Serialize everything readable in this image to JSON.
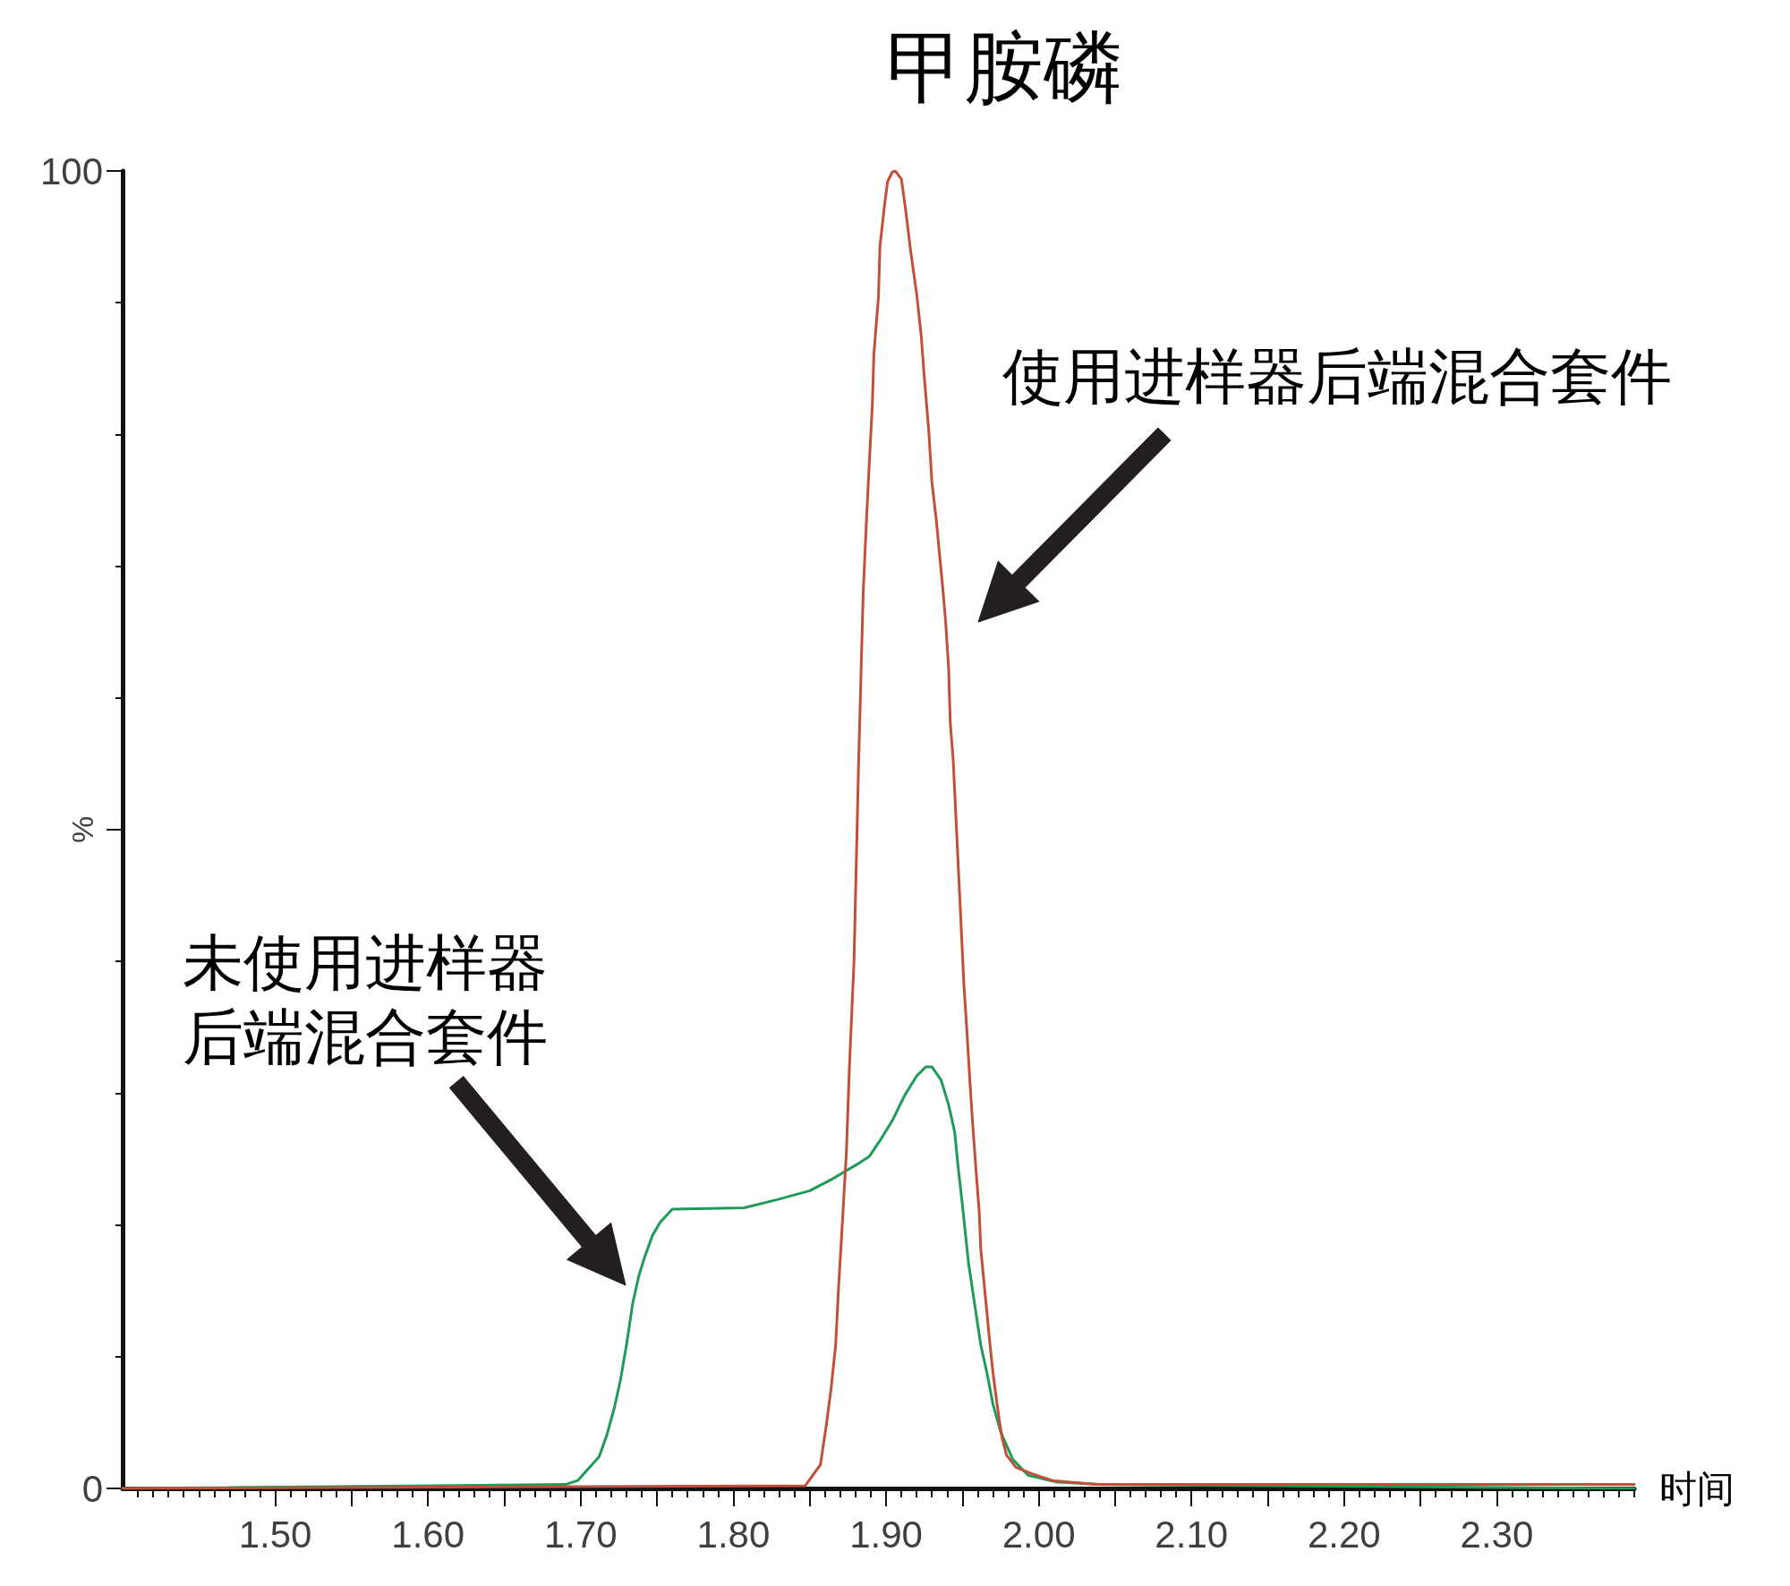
{
  "chart_data": {
    "type": "line",
    "title": "甲胺磷",
    "xlabel": "时间",
    "ylabel": "%",
    "annotations": [
      "使用进样器后端混合套件",
      "未使用进样器后端混合套件"
    ],
    "series": [
      {
        "color": "#1f9a58",
        "x": [
          1.4,
          1.69,
          1.698,
          1.705,
          1.712,
          1.717,
          1.722,
          1.726,
          1.73,
          1.734,
          1.738,
          1.742,
          1.747,
          1.752,
          1.76,
          1.807,
          1.828,
          1.85,
          1.865,
          1.881,
          1.889,
          1.896,
          1.904,
          1.912,
          1.92,
          1.926,
          1.93,
          1.936,
          1.941,
          1.945,
          1.947,
          1.95,
          1.954,
          1.958,
          1.962,
          1.966,
          1.97,
          1.975,
          1.983,
          1.993,
          2.011,
          2.04,
          2.39
        ],
        "values": [
          0,
          0.3,
          0.6,
          1.5,
          2.4,
          4,
          6.1,
          8.2,
          10.9,
          14,
          16.1,
          17.6,
          19.2,
          20.2,
          21.2,
          21.3,
          21.9,
          22.6,
          23.5,
          24.6,
          25.2,
          26.4,
          27.9,
          29.8,
          31.3,
          32,
          32,
          31,
          29.1,
          27,
          24.6,
          21.5,
          17.1,
          14,
          10.9,
          8.8,
          6.4,
          4.3,
          2.2,
          1,
          0.5,
          0.3,
          0
        ]
      },
      {
        "color": "#c24f3a",
        "x": [
          1.4,
          1.847,
          1.857,
          1.861,
          1.864,
          1.867,
          1.869,
          1.871,
          1.874,
          1.876,
          1.879,
          1.882,
          1.885,
          1.887,
          1.889,
          1.891,
          1.892,
          1.895,
          1.896,
          1.899,
          1.901,
          1.904,
          1.906,
          1.91,
          1.913,
          1.916,
          1.92,
          1.923,
          1.925,
          1.928,
          1.93,
          1.933,
          1.935,
          1.937,
          1.939,
          1.941,
          1.942,
          1.944,
          1.951,
          1.953,
          1.955,
          1.957,
          1.959,
          1.961,
          1.962,
          1.964,
          1.966,
          1.968,
          1.97,
          1.972,
          1.974,
          1.976,
          1.979,
          1.985,
          1.996,
          2.009,
          2.038,
          2.39
        ],
        "values": [
          0,
          0.2,
          1.8,
          4.9,
          7.6,
          10.9,
          15.5,
          19.4,
          25.5,
          32,
          40,
          55,
          67.9,
          73.1,
          77.8,
          82.2,
          86.1,
          90.4,
          94.3,
          97.4,
          99.2,
          99.9,
          100,
          99.4,
          96.9,
          94,
          90.7,
          87.5,
          84.4,
          80.2,
          76.4,
          73.4,
          70.9,
          68.5,
          65.8,
          62.2,
          58.2,
          55.2,
          38.2,
          34.6,
          30.7,
          27.2,
          24,
          21,
          18.2,
          15.8,
          13.4,
          11,
          8.8,
          7,
          5.3,
          3.8,
          2.5,
          1.6,
          1.1,
          0.6,
          0.3,
          0.3
        ]
      }
    ],
    "xlim": [
      1.4,
      2.39
    ],
    "ylim": [
      0,
      100
    ],
    "xticks": [
      {
        "value": 1.41,
        "label": null
      },
      {
        "value": 1.42,
        "label": null
      },
      {
        "value": 1.43,
        "label": null
      },
      {
        "value": 1.44,
        "label": null
      },
      {
        "value": 1.45,
        "label": null
      },
      {
        "value": 1.46,
        "label": null
      },
      {
        "value": 1.47,
        "label": null
      },
      {
        "value": 1.48,
        "label": null
      },
      {
        "value": 1.49,
        "label": null
      },
      {
        "value": 1.5,
        "label": "1.50"
      },
      {
        "value": 1.51,
        "label": null
      },
      {
        "value": 1.52,
        "label": null
      },
      {
        "value": 1.53,
        "label": null
      },
      {
        "value": 1.54,
        "label": null
      },
      {
        "value": 1.55,
        "label": null
      },
      {
        "value": 1.56,
        "label": null
      },
      {
        "value": 1.57,
        "label": null
      },
      {
        "value": 1.58,
        "label": null
      },
      {
        "value": 1.59,
        "label": null
      },
      {
        "value": 1.6,
        "label": "1.60"
      },
      {
        "value": 1.61,
        "label": null
      },
      {
        "value": 1.62,
        "label": null
      },
      {
        "value": 1.63,
        "label": null
      },
      {
        "value": 1.64,
        "label": null
      },
      {
        "value": 1.65,
        "label": null
      },
      {
        "value": 1.66,
        "label": null
      },
      {
        "value": 1.67,
        "label": null
      },
      {
        "value": 1.68,
        "label": null
      },
      {
        "value": 1.69,
        "label": null
      },
      {
        "value": 1.7,
        "label": "1.70"
      },
      {
        "value": 1.71,
        "label": null
      },
      {
        "value": 1.72,
        "label": null
      },
      {
        "value": 1.73,
        "label": null
      },
      {
        "value": 1.74,
        "label": null
      },
      {
        "value": 1.75,
        "label": null
      },
      {
        "value": 1.76,
        "label": null
      },
      {
        "value": 1.77,
        "label": null
      },
      {
        "value": 1.78,
        "label": null
      },
      {
        "value": 1.79,
        "label": null
      },
      {
        "value": 1.8,
        "label": "1.80"
      },
      {
        "value": 1.81,
        "label": null
      },
      {
        "value": 1.82,
        "label": null
      },
      {
        "value": 1.83,
        "label": null
      },
      {
        "value": 1.84,
        "label": null
      },
      {
        "value": 1.85,
        "label": null
      },
      {
        "value": 1.86,
        "label": null
      },
      {
        "value": 1.87,
        "label": null
      },
      {
        "value": 1.88,
        "label": null
      },
      {
        "value": 1.89,
        "label": null
      },
      {
        "value": 1.9,
        "label": "1.90"
      },
      {
        "value": 1.91,
        "label": null
      },
      {
        "value": 1.92,
        "label": null
      },
      {
        "value": 1.93,
        "label": null
      },
      {
        "value": 1.94,
        "label": null
      },
      {
        "value": 1.95,
        "label": null
      },
      {
        "value": 1.96,
        "label": null
      },
      {
        "value": 1.97,
        "label": null
      },
      {
        "value": 1.98,
        "label": null
      },
      {
        "value": 1.99,
        "label": null
      },
      {
        "value": 2.0,
        "label": "2.00"
      },
      {
        "value": 2.01,
        "label": null
      },
      {
        "value": 2.02,
        "label": null
      },
      {
        "value": 2.03,
        "label": null
      },
      {
        "value": 2.04,
        "label": null
      },
      {
        "value": 2.05,
        "label": null
      },
      {
        "value": 2.06,
        "label": null
      },
      {
        "value": 2.07,
        "label": null
      },
      {
        "value": 2.08,
        "label": null
      },
      {
        "value": 2.09,
        "label": null
      },
      {
        "value": 2.1,
        "label": "2.10"
      },
      {
        "value": 2.11,
        "label": null
      },
      {
        "value": 2.12,
        "label": null
      },
      {
        "value": 2.13,
        "label": null
      },
      {
        "value": 2.14,
        "label": null
      },
      {
        "value": 2.15,
        "label": null
      },
      {
        "value": 2.16,
        "label": null
      },
      {
        "value": 2.17,
        "label": null
      },
      {
        "value": 2.18,
        "label": null
      },
      {
        "value": 2.19,
        "label": null
      },
      {
        "value": 2.2,
        "label": "2.20"
      },
      {
        "value": 2.21,
        "label": null
      },
      {
        "value": 2.22,
        "label": null
      },
      {
        "value": 2.23,
        "label": null
      },
      {
        "value": 2.24,
        "label": null
      },
      {
        "value": 2.25,
        "label": null
      },
      {
        "value": 2.26,
        "label": null
      },
      {
        "value": 2.27,
        "label": null
      },
      {
        "value": 2.28,
        "label": null
      },
      {
        "value": 2.29,
        "label": null
      },
      {
        "value": 2.3,
        "label": "2.30"
      },
      {
        "value": 2.31,
        "label": null
      },
      {
        "value": 2.32,
        "label": null
      },
      {
        "value": 2.33,
        "label": null
      },
      {
        "value": 2.34,
        "label": null
      },
      {
        "value": 2.35,
        "label": null
      },
      {
        "value": 2.36,
        "label": null
      },
      {
        "value": 2.37,
        "label": null
      },
      {
        "value": 2.38,
        "label": null
      },
      {
        "value": 2.39,
        "label": null
      }
    ],
    "yticks": [
      0,
      {
        "value": 10,
        "label": null
      },
      {
        "value": 20,
        "label": null
      },
      {
        "value": 30,
        "label": null
      },
      {
        "value": 40,
        "label": null
      },
      {
        "value": 50,
        "label": null
      },
      {
        "value": 60,
        "label": null
      },
      {
        "value": 70,
        "label": null
      },
      {
        "value": 80,
        "label": null
      },
      {
        "value": 90,
        "label": null
      },
      100
    ],
    "marker": "none",
    "line_style": "solid"
  }
}
